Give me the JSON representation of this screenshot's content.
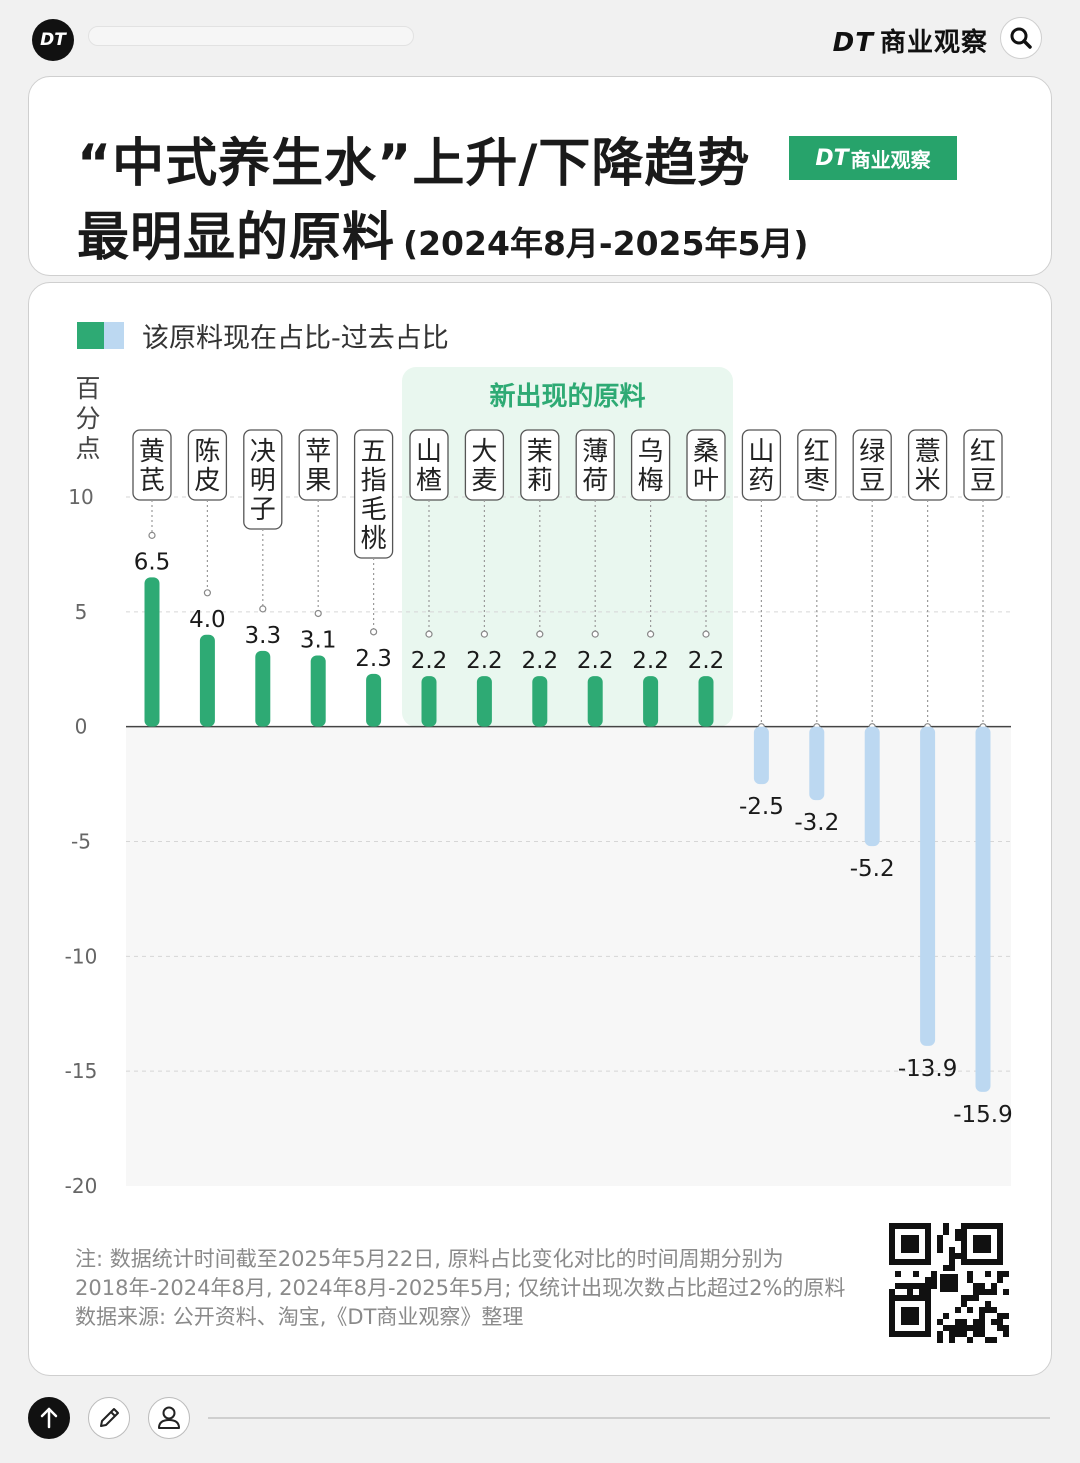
{
  "header": {
    "logo": "DT",
    "brand_dt": "DT",
    "brand_name": "商业观察",
    "title_line1": "“中式养生水”上升/下降趋势",
    "title_line2": "最明显的原料",
    "title_period": "(2024年8月-2025年5月)",
    "badge_dt": "DT",
    "badge_name": "商业观察"
  },
  "colors": {
    "accent_green": "#2eaa74",
    "negative_blue": "#bcd8f1",
    "highlight_bg": "#e9f7ef"
  },
  "chart_data": {
    "type": "bar",
    "title": "“中式养生水”上升/下降趋势最明显的原料 (2024年8月-2025年5月)",
    "legend": "该原料现在占比-过去占比",
    "ylabel": "百分点",
    "ylim": [
      -20,
      10
    ],
    "yticks": [
      10,
      5,
      0,
      -5,
      -10,
      -15,
      -20
    ],
    "highlight_label": "新出现的原料",
    "highlight_categories": [
      "山楂",
      "大麦",
      "茉莉",
      "薄荷",
      "乌梅",
      "桑叶"
    ],
    "categories": [
      "黄芪",
      "陈皮",
      "决明子",
      "苹果",
      "五指毛桃",
      "山楂",
      "大麦",
      "茉莉",
      "薄荷",
      "乌梅",
      "桑叶",
      "山药",
      "红枣",
      "绿豆",
      "薏米",
      "红豆"
    ],
    "values": [
      6.5,
      4.0,
      3.3,
      3.1,
      2.3,
      2.2,
      2.2,
      2.2,
      2.2,
      2.2,
      2.2,
      -2.5,
      -3.2,
      -5.2,
      -13.9,
      -15.9
    ],
    "value_labels": [
      "6.5",
      "4.0",
      "3.3",
      "3.1",
      "2.3",
      "2.2",
      "2.2",
      "2.2",
      "2.2",
      "2.2",
      "2.2",
      "-2.5",
      "-3.2",
      "-5.2",
      "-13.9",
      "-15.9"
    ],
    "grid": true
  },
  "notes": {
    "line1": "注: 数据统计时间截至2025年5月22日, 原料占比变化对比的时间周期分别为",
    "line2": "2018年-2024年8月, 2024年8月-2025年5月; 仅统计出现次数占比超过2%的原料",
    "line3": "数据来源: 公开资料、淘宝,《DT商业观察》整理"
  },
  "icons": {
    "search": "search-icon",
    "scroll_top": "arrow-up-icon",
    "edit": "pencil-icon",
    "profile": "user-icon",
    "qr": "qr-code-icon"
  }
}
